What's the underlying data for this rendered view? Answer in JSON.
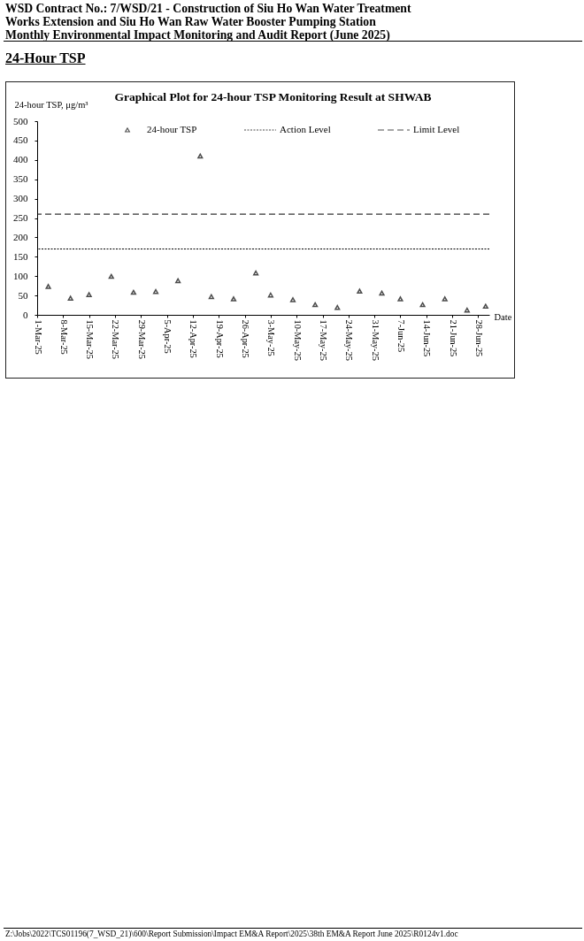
{
  "chart_data": {
    "type": "scatter",
    "title": "Graphical Plot for 24-hour TSP Monitoring Result at SHWAB",
    "xlabel": "Date",
    "ylabel": "24-hour TSP, μg/m³",
    "x": [
      "2025-03-04",
      "2025-03-10",
      "2025-03-15",
      "2025-03-21",
      "2025-03-27",
      "2025-04-02",
      "2025-04-08",
      "2025-04-14",
      "2025-04-17",
      "2025-04-23",
      "2025-04-29",
      "2025-05-03",
      "2025-05-09",
      "2025-05-15",
      "2025-05-21",
      "2025-05-27",
      "2025-06-02",
      "2025-06-07",
      "2025-06-13",
      "2025-06-19",
      "2025-06-25",
      "2025-06-30"
    ],
    "series": [
      {
        "name": "24-hour TSP",
        "color": "#000000",
        "values": [
          73,
          43,
          52,
          99,
          58,
          60,
          88,
          410,
          47,
          41,
          108,
          51,
          39,
          26,
          19,
          61,
          56,
          41,
          26,
          41,
          12,
          22
        ]
      }
    ],
    "xlim": [
      "2025-03-01",
      "2025-07-01"
    ],
    "xticks": [
      {
        "value": "2025-03-01",
        "label": "1-Mar-25"
      },
      {
        "value": "2025-03-08",
        "label": "8-Mar-25"
      },
      {
        "value": "2025-03-15",
        "label": "15-Mar-25"
      },
      {
        "value": "2025-03-22",
        "label": "22-Mar-25"
      },
      {
        "value": "2025-03-29",
        "label": "29-Mar-25"
      },
      {
        "value": "2025-04-05",
        "label": "5-Apr-25"
      },
      {
        "value": "2025-04-12",
        "label": "12-Apr-25"
      },
      {
        "value": "2025-04-19",
        "label": "19-Apr-25"
      },
      {
        "value": "2025-04-26",
        "label": "26-Apr-25"
      },
      {
        "value": "2025-05-03",
        "label": "3-May-25"
      },
      {
        "value": "2025-05-10",
        "label": "10-May-25"
      },
      {
        "value": "2025-05-17",
        "label": "17-May-25"
      },
      {
        "value": "2025-05-24",
        "label": "24-May-25"
      },
      {
        "value": "2025-05-31",
        "label": "31-May-25"
      },
      {
        "value": "2025-06-07",
        "label": "7-Jun-25"
      },
      {
        "value": "2025-06-14",
        "label": "14-Jun-25"
      },
      {
        "value": "2025-06-21",
        "label": "21-Jun-25"
      },
      {
        "value": "2025-06-28",
        "label": "28-Jun-25"
      }
    ],
    "ylim": [
      0,
      500
    ],
    "yticks": [
      0,
      50,
      100,
      150,
      200,
      250,
      300,
      350,
      400,
      450,
      500
    ],
    "ref_lines": [
      {
        "axis": "y",
        "value": 170,
        "label": "Action Level",
        "line_style": "dotted",
        "color": "#000000"
      },
      {
        "axis": "y",
        "value": 260,
        "label": "Limit Level",
        "line_style": "dashed",
        "color": "#000000"
      }
    ],
    "legend": "top",
    "marker": "triangle",
    "annotations": [
      "WSD Contract No.: 7/WSD/21 - Construction of Siu Ho Wan Water Treatment",
      "Works Extension and Siu Ho Wan Raw Water Booster Pumping Station",
      "Monthly Environmental Impact Monitoring and Audit Report (June 2025)",
      "24-Hour TSP",
      "Z:\\Jobs\\2022\\TCS01196(7_WSD_21)\\600\\Report Submission\\Impact EM&A Report\\2025\\38th EM&A Report June 2025\\R0124v1.doc"
    ]
  }
}
